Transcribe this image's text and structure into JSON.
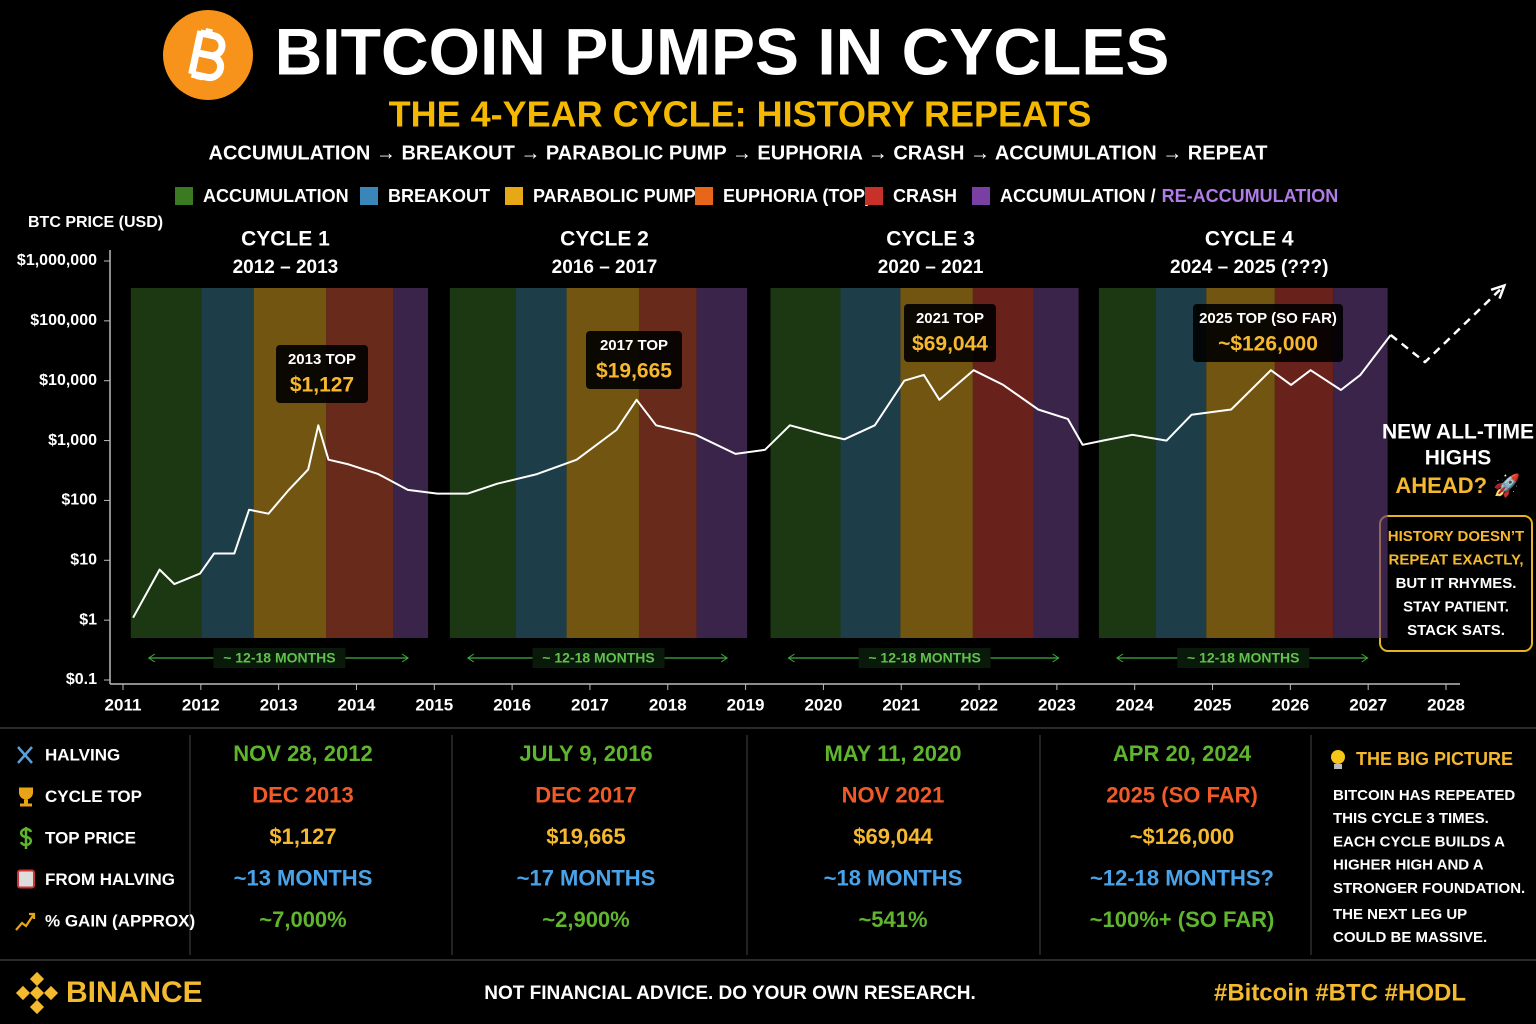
{
  "header": {
    "title": "BITCOIN PUMPS IN CYCLES",
    "subtitle": "THE 4-YEAR CYCLE: HISTORY REPEATS",
    "tagline": "ACCUMULATION → BREAKOUT → PARABOLIC PUMP → EUPHORIA → CRASH → ACCUMULATION → REPEAT"
  },
  "chart_data": {
    "type": "line",
    "y_label": "BTC PRICE (USD)",
    "log_scale": true,
    "legend": [
      {
        "name": "ACCUMULATION",
        "color": "#3a7a22"
      },
      {
        "name": "BREAKOUT",
        "color": "#3a86b8"
      },
      {
        "name": "PARABOLIC PUMP",
        "color": "#e6a817"
      },
      {
        "name": "EUPHORIA (TOP)",
        "color": "#e8661a"
      },
      {
        "name": "CRASH",
        "color": "#c8302a"
      },
      {
        "name": "ACCUMULATION /",
        "highlight": "RE-ACCUMULATION",
        "color": "#7a3fa3",
        "highlight_color": "#b07ce8"
      }
    ],
    "cycles": [
      {
        "label": "CYCLE 1",
        "years": "2012 – 2013",
        "top_label": "2013 TOP",
        "top_price": "$1,127",
        "duration": "~ 12-18 MONTHS",
        "band_edges": [
          2011.1,
          2012.01,
          2012.68,
          2013.61,
          2014.47,
          2014.92
        ],
        "band_colors": [
          "#2b5a1e",
          "#2f6476",
          "#b8891c",
          "#a8442c",
          "#5e3a78"
        ]
      },
      {
        "label": "CYCLE 2",
        "years": "2016 – 2017",
        "top_label": "2017 TOP",
        "top_price": "$19,665",
        "duration": "~ 12-18 MONTHS",
        "band_edges": [
          2015.2,
          2016.05,
          2016.7,
          2017.63,
          2018.37,
          2019.02
        ],
        "band_colors": [
          "#2b5a1e",
          "#2f6476",
          "#b8891c",
          "#a8442c",
          "#5e3a78"
        ]
      },
      {
        "label": "CYCLE 3",
        "years": "2020 – 2021",
        "top_label": "2021 TOP",
        "top_price": "$69,044",
        "duration": "~ 12-18 MONTHS",
        "band_edges": [
          2019.32,
          2020.22,
          2020.99,
          2021.92,
          2022.7,
          2023.28
        ],
        "band_colors": [
          "#2b5a1e",
          "#2f6476",
          "#b8891c",
          "#a8362c",
          "#5e3a78"
        ]
      },
      {
        "label": "CYCLE 4",
        "years": "2024 – 2025 (???)",
        "top_label": "2025 TOP (SO FAR)",
        "top_price": "~$126,000",
        "duration": "~ 12-18 MONTHS",
        "band_edges": [
          2023.54,
          2024.27,
          2024.92,
          2025.8,
          2026.55,
          2027.25
        ],
        "band_colors": [
          "#2b5a1e",
          "#2f6476",
          "#b8891c",
          "#a8362c",
          "#5e3a78"
        ]
      }
    ],
    "series": [
      {
        "color": "#ffffff",
        "x": [
          2011.13,
          2011.47,
          2011.66,
          2011.99,
          2012.17,
          2012.43,
          2012.62,
          2012.87,
          2013.13,
          2013.38,
          2013.51,
          2013.64,
          2013.9,
          2014.28,
          2014.66,
          2015.04,
          2015.43,
          2015.81,
          2016.32,
          2016.83,
          2017.34,
          2017.6,
          2017.85,
          2018.36,
          2018.87,
          2019.25,
          2019.57,
          2020.02,
          2020.27,
          2020.66,
          2021.04,
          2021.29,
          2021.49,
          2021.93,
          2022.31,
          2022.76,
          2023.14,
          2023.33,
          2023.59,
          2023.97,
          2024.41,
          2024.73,
          2025.24,
          2025.75,
          2026.01,
          2026.26,
          2026.65,
          2026.9,
          2027.29
        ],
        "values": [
          1.1,
          7,
          4,
          6,
          13,
          13,
          70,
          60,
          150,
          330,
          1800,
          480,
          400,
          275,
          150,
          130,
          130,
          190,
          275,
          480,
          1500,
          4800,
          1800,
          1250,
          600,
          700,
          1800,
          1250,
          1050,
          1800,
          10000,
          12500,
          4800,
          15000,
          8500,
          3300,
          2300,
          850,
          1000,
          1250,
          1000,
          2700,
          3300,
          15000,
          8500,
          15000,
          7000,
          12500,
          58000
        ]
      },
      {
        "color": "#ffffff",
        "dashed": true,
        "x": [
          2027.29,
          2027.73,
          2028.75
        ],
        "values": [
          58000,
          20500,
          390000
        ]
      }
    ],
    "xlim": [
      2011,
      2028
    ],
    "xticks": [
      2011,
      2012,
      2013,
      2014,
      2015,
      2016,
      2017,
      2018,
      2019,
      2020,
      2021,
      2022,
      2023,
      2024,
      2025,
      2026,
      2027,
      2028
    ],
    "ylim": [
      0.1,
      1000000
    ],
    "yticks": [
      {
        "value": 0.1,
        "label": "$0.1"
      },
      {
        "value": 1,
        "label": "$1"
      },
      {
        "value": 10,
        "label": "$10"
      },
      {
        "value": 100,
        "label": "$100"
      },
      {
        "value": 1000,
        "label": "$1,000"
      },
      {
        "value": 10000,
        "label": "$10,000"
      },
      {
        "value": 100000,
        "label": "$100,000"
      },
      {
        "value": 1000000,
        "label": "$1,000,000"
      }
    ],
    "callout": {
      "lines": [
        "NEW ALL-TIME",
        "HIGHS"
      ],
      "highlight": "AHEAD? 🚀"
    },
    "note_lines": [
      "HISTORY DOESN’T",
      "REPEAT EXACTLY,",
      "BUT IT RHYMES.",
      "STAY PATIENT.",
      "STACK SATS."
    ]
  },
  "table": {
    "rows": [
      {
        "label": "HALVING",
        "color": "#5fb52e",
        "cells": [
          "NOV 28, 2012",
          "JULY 9, 2016",
          "MAY 11, 2020",
          "APR 20, 2024"
        ]
      },
      {
        "label": "CYCLE TOP",
        "color": "#f05a28",
        "cells": [
          "DEC 2013",
          "DEC 2017",
          "NOV 2021",
          "2025 (SO FAR)"
        ]
      },
      {
        "label": "TOP PRICE",
        "color": "#f5b82e",
        "cells": [
          "$1,127",
          "$19,665",
          "$69,044",
          "~$126,000"
        ]
      },
      {
        "label": "FROM HALVING",
        "color": "#4aa3e8",
        "cells": [
          "~13 MONTHS",
          "~17 MONTHS",
          "~18 MONTHS",
          "~12-18 MONTHS?"
        ]
      },
      {
        "label": "% GAIN (APPROX)",
        "color": "#5fb52e",
        "cells": [
          "~7,000%",
          "~2,900%",
          "~541%",
          "~100%+ (SO FAR)"
        ]
      }
    ],
    "big_picture": {
      "title": "THE BIG PICTURE",
      "lines": [
        "BITCOIN HAS REPEATED",
        "THIS CYCLE 3 TIMES.",
        "EACH CYCLE BUILDS A",
        "HIGHER HIGH AND A",
        "STRONGER FOUNDATION.",
        "THE NEXT LEG UP",
        "COULD BE MASSIVE."
      ]
    }
  },
  "footer": {
    "brand": "BINANCE",
    "disclaimer": "NOT FINANCIAL ADVICE. DO YOUR OWN RESEARCH.",
    "hashtags": "#Bitcoin #BTC #HODL"
  }
}
